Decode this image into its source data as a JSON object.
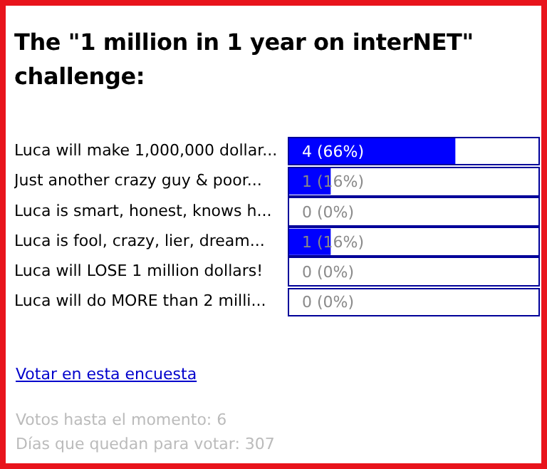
{
  "chart_data": {
    "type": "bar",
    "orientation": "horizontal",
    "title": "The \"1 million in 1 year on interNET\" challenge:",
    "categories": [
      "Luca will make 1,000,000 dollar...",
      "Just another crazy guy & poor...",
      "Luca is smart, honest, knows h...",
      "Luca is fool, crazy, lier, dream...",
      "Luca will LOSE 1 million dollars!",
      "Luca will do MORE than 2 milli..."
    ],
    "values": [
      4,
      1,
      0,
      1,
      0,
      0
    ],
    "color": "#0000ff",
    "value_labels": [
      "4 (66%)",
      "1 (16%)",
      "0 (0%)",
      "1 (16%)",
      "0 (0%)",
      "0 (0%)"
    ],
    "xlim": [
      0,
      6
    ],
    "tick_labels": "y",
    "grid": false,
    "legend": false,
    "annotations": [
      "Votar en esta encuesta",
      "Votos hasta el momento: 6",
      "Días que quedan para votar: 307"
    ]
  }
}
